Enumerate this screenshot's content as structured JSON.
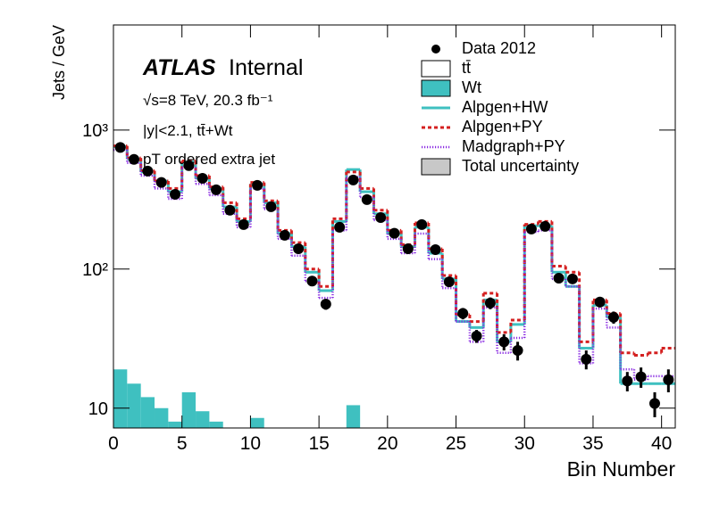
{
  "chart_data": {
    "type": "histogram-log",
    "x_label": "Bin Number",
    "y_label": "Jets / GeV",
    "annotations": {
      "atlas": "ATLAS",
      "status": "Internal",
      "energy": "√s=8 TeV, 20.3 fb⁻¹",
      "selection": "|y|<2.1, tt̄+Wt",
      "variable": "pT ordered extra jet"
    },
    "bins": [
      0,
      1,
      2,
      3,
      4,
      5,
      6,
      7,
      8,
      9,
      10,
      11,
      12,
      13,
      14,
      15,
      16,
      17,
      18,
      19,
      20,
      21,
      22,
      23,
      24,
      25,
      26,
      27,
      28,
      29,
      30,
      31,
      32,
      33,
      34,
      35,
      36,
      37,
      38,
      39,
      40,
      41
    ],
    "xlim": [
      0,
      41
    ],
    "xticks": [
      0,
      5,
      10,
      15,
      20,
      25,
      30,
      35,
      40
    ],
    "ylim": [
      7.2,
      5700
    ],
    "log_y": true,
    "yticks": [
      10,
      {
        "value": 100,
        "label": "10²"
      },
      {
        "value": 1000,
        "label": "10³"
      }
    ],
    "stack": [
      {
        "name": "tt̄",
        "color": "#ffffff",
        "values": [
          741,
          605,
          488,
          420,
          352,
          577,
          440.5,
          372,
          273,
          213,
          401.5,
          293,
          173,
          138,
          88,
          63,
          213,
          509.5,
          354,
          244,
          174,
          139,
          194,
          124,
          80,
          37,
          33,
          55,
          25,
          35,
          200,
          200,
          90,
          70,
          22,
          50,
          40,
          10,
          10,
          10,
          10
        ]
      },
      {
        "name": "Wt",
        "color": "#3fc0c0",
        "values": [
          19,
          15,
          12,
          10,
          8,
          13,
          9.5,
          8,
          7,
          7,
          8.5,
          7,
          7,
          7,
          7,
          7,
          7,
          10.5,
          6,
          6,
          6,
          6,
          6,
          6,
          5,
          5,
          5,
          5,
          5,
          5,
          5,
          5,
          5,
          5,
          5,
          5,
          5,
          5,
          5,
          5,
          5
        ]
      }
    ],
    "lines": [
      {
        "name": "Alpgen+HW",
        "color": "#3fc0c0",
        "style": "solid",
        "values": [
          760,
          620,
          500,
          430,
          360,
          590,
          450,
          380,
          280,
          220,
          410,
          300,
          180,
          145,
          95,
          70,
          220,
          520,
          360,
          250,
          180,
          145,
          200,
          130,
          85,
          42,
          38,
          60,
          30,
          40,
          205,
          205,
          95,
          75,
          27,
          55,
          45,
          15,
          15,
          15,
          15
        ]
      },
      {
        "name": "Alpgen+PY",
        "color": "#d42020",
        "style": "dashed",
        "values": [
          770,
          630,
          510,
          430,
          380,
          600,
          470,
          390,
          300,
          230,
          420,
          310,
          190,
          155,
          100,
          75,
          230,
          500,
          380,
          265,
          190,
          150,
          215,
          140,
          90,
          47,
          42,
          67,
          35,
          43,
          210,
          220,
          105,
          95,
          30,
          60,
          48,
          25,
          24,
          25,
          27
        ]
      },
      {
        "name": "Madgraph+PY",
        "color": "#8a2be2",
        "style": "dotted",
        "values": [
          720,
          580,
          470,
          380,
          320,
          540,
          410,
          340,
          250,
          200,
          380,
          270,
          165,
          125,
          82,
          62,
          190,
          460,
          330,
          225,
          165,
          130,
          180,
          118,
          73,
          42,
          30,
          53,
          25,
          32,
          185,
          190,
          85,
          75,
          21,
          52,
          38,
          19,
          16,
          17,
          17
        ]
      }
    ],
    "data": {
      "name": "Data 2012",
      "color": "#000000",
      "values": [
        750,
        615,
        507,
        420,
        345,
        555,
        450,
        372,
        265,
        209,
        400,
        281,
        175,
        140,
        82,
        56,
        200,
        437,
        316,
        235,
        181,
        140,
        209,
        138,
        81,
        48,
        33,
        57,
        30,
        26,
        194,
        203,
        86,
        85,
        22.5,
        58,
        45,
        15.7,
        16.8,
        10.8,
        16
      ],
      "errors": [
        20,
        18,
        16,
        14,
        13,
        17,
        15,
        14,
        11,
        10,
        15,
        12,
        9,
        8,
        6,
        5,
        10,
        16,
        13,
        11,
        9,
        8,
        11,
        8,
        6,
        4.5,
        3.5,
        5.5,
        4,
        4,
        10,
        10,
        6,
        6,
        3.5,
        5,
        4.5,
        2.5,
        2.8,
        2.2,
        3
      ]
    },
    "legend_extra": [
      {
        "name": "Total uncertainty",
        "color": "#c8c8c8"
      }
    ]
  }
}
